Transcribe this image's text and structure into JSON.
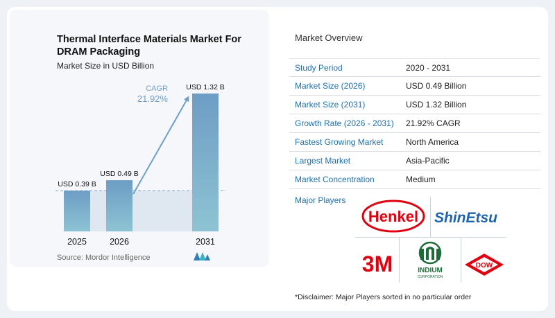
{
  "chart_data": {
    "type": "bar",
    "title": "Thermal Interface Materials Market For DRAM Packaging",
    "subtitle": "Market Size in USD Billion",
    "categories": [
      "2025",
      "2026",
      "2031"
    ],
    "values": [
      0.39,
      0.49,
      1.32
    ],
    "data_labels": [
      "USD 0.39 B",
      "USD 0.49 B",
      "USD 1.32 B"
    ],
    "cagr_label": "CAGR",
    "cagr_value": "21.92%",
    "ylim": [
      0,
      1.32
    ],
    "colors": {
      "bar_top": "#6d9dc5",
      "bar_bottom": "#8ec3d3",
      "arrow": "#6f9fc6",
      "dash": "#7e9fc0",
      "shade": "#dfe8f1"
    }
  },
  "source": "Source:  Mordor Intelligence",
  "overview": {
    "title": "Market Overview",
    "rows": [
      {
        "label": "Study Period",
        "value": "2020 - 2031"
      },
      {
        "label": "Market Size (2026)",
        "value": "USD 0.49 Billion"
      },
      {
        "label": "Market Size (2031)",
        "value": "USD 1.32 Billion"
      },
      {
        "label": "Growth Rate (2026 - 2031)",
        "value": "21.92% CAGR"
      },
      {
        "label": "Fastest Growing Market",
        "value": "North America"
      },
      {
        "label": "Largest Market",
        "value": "Asia-Pacific"
      },
      {
        "label": "Market Concentration",
        "value": "Medium"
      }
    ],
    "players_label": "Major Players",
    "players": [
      "Henkel",
      "ShinEtsu",
      "3M",
      "INDIUM",
      "CORPORATION",
      "DOW"
    ],
    "disclaimer": "*Disclaimer: Major Players sorted in no particular order"
  }
}
